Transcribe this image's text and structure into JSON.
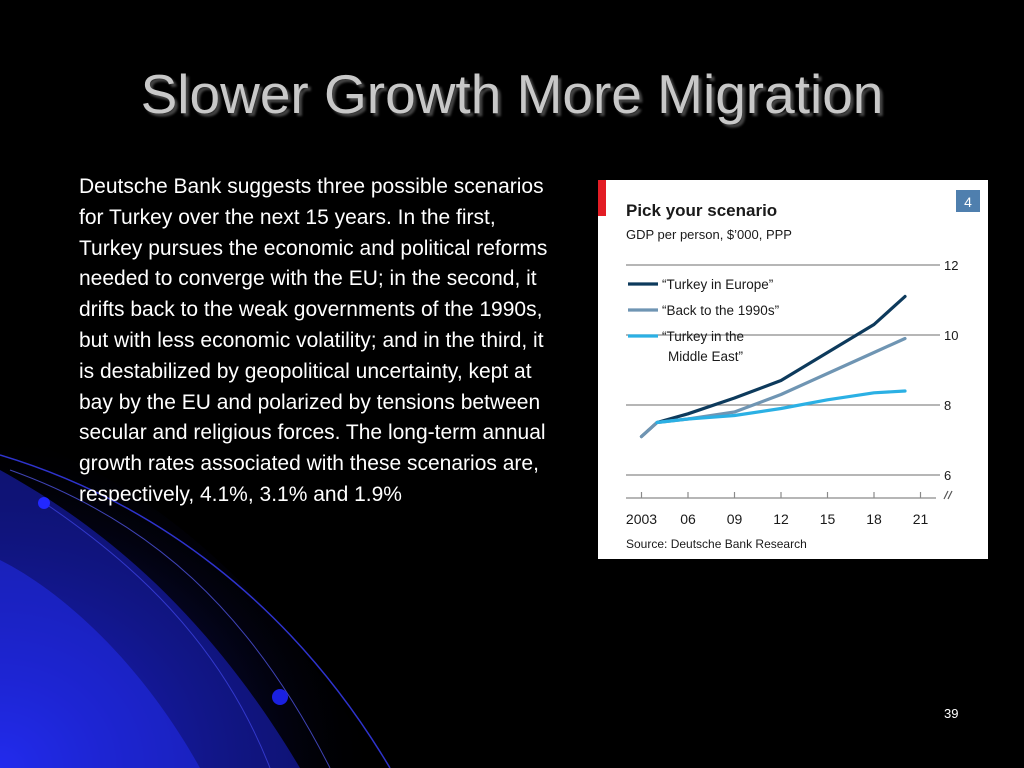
{
  "slide": {
    "title": "Slower Growth More Migration",
    "body": "Deutsche Bank suggests three possible scenarios for Turkey over the next 15 years. In the first, Turkey pursues the economic and political reforms needed to converge with the EU; in the second, it drifts back to the weak governments of the 1990s, but with less economic volatility; and in the third, it is destabilized by geopolitical uncertainty, kept at bay by the EU and polarized by tensions between secular and religious forces. The long-term annual growth rates associated with these scenarios are, respectively, 4.1%, 3.1% and 1.9%",
    "page_number": "39"
  },
  "colors": {
    "background": "#000000",
    "title_text": "#c8c8c8",
    "body_text": "#ffffff",
    "swoosh": "#1a22c8",
    "chart_badge": "#4f7fae",
    "chart_accent": "#e31d25"
  },
  "chart_data": {
    "type": "line",
    "title": "Pick your scenario",
    "subtitle": "GDP per person, $’000, PPP",
    "badge": "4",
    "source": "Source: Deutsche Bank Research",
    "x_tick_labels": [
      "2003",
      "06",
      "09",
      "12",
      "15",
      "18",
      "21"
    ],
    "x_ticks": [
      2003,
      2006,
      2009,
      2012,
      2015,
      2018,
      2021
    ],
    "xlim": [
      2002,
      2022
    ],
    "y_ticks": [
      6,
      8,
      10,
      12
    ],
    "ylim": [
      6,
      12
    ],
    "y_axis_side": "right",
    "axis_break": true,
    "grid": true,
    "legend_position": "top-left",
    "series": [
      {
        "name": "“Turkey in Europe”",
        "legend_lines": [
          "“Turkey in Europe”"
        ],
        "color": "#0d3a5c",
        "x": [
          2003,
          2004,
          2006,
          2009,
          2012,
          2015,
          2018,
          2020
        ],
        "y": [
          7.1,
          7.5,
          7.75,
          8.2,
          8.7,
          9.5,
          10.3,
          11.1
        ]
      },
      {
        "name": "“Back to the 1990s”",
        "legend_lines": [
          "“Back to the 1990s”"
        ],
        "color": "#6f95b3",
        "x": [
          2003,
          2004,
          2006,
          2009,
          2012,
          2015,
          2018,
          2020
        ],
        "y": [
          7.1,
          7.5,
          7.6,
          7.8,
          8.3,
          8.9,
          9.5,
          9.9
        ]
      },
      {
        "name": "“Turkey in the Middle East”",
        "legend_lines": [
          "“Turkey in the",
          "Middle East”"
        ],
        "color": "#2bb0e4",
        "x": [
          2004,
          2006,
          2009,
          2012,
          2015,
          2018,
          2020
        ],
        "y": [
          7.5,
          7.6,
          7.7,
          7.9,
          8.15,
          8.35,
          8.4
        ]
      }
    ]
  }
}
